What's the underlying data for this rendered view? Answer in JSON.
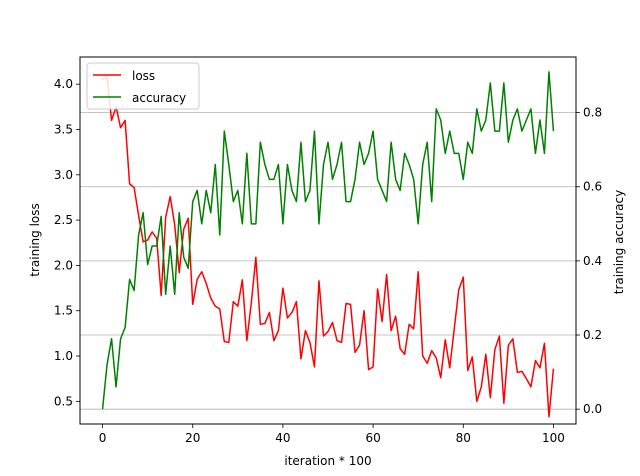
{
  "chart_data": {
    "type": "line",
    "xlabel": "iteration * 100",
    "ylabel": "training loss",
    "y2label": "training accuracy",
    "xlim": [
      -5,
      105
    ],
    "ylim": [
      0.25,
      4.3
    ],
    "y2lim": [
      -0.04,
      0.95
    ],
    "xticks": [
      "0",
      "20",
      "40",
      "60",
      "80",
      "100"
    ],
    "yticks": [
      "0.5",
      "1.0",
      "1.5",
      "2.0",
      "2.5",
      "3.0",
      "3.5",
      "4.0"
    ],
    "y2ticks": [
      "0.0",
      "0.2",
      "0.4",
      "0.6",
      "0.8"
    ],
    "grid": "horizontal lines at right-axis ticks",
    "legend": "upper-left",
    "x": [
      0,
      1,
      2,
      3,
      4,
      5,
      6,
      7,
      8,
      9,
      10,
      11,
      12,
      13,
      14,
      15,
      16,
      17,
      18,
      19,
      20,
      21,
      22,
      23,
      24,
      25,
      26,
      27,
      28,
      29,
      30,
      31,
      32,
      33,
      34,
      35,
      36,
      37,
      38,
      39,
      40,
      41,
      42,
      43,
      44,
      45,
      46,
      47,
      48,
      49,
      50,
      51,
      52,
      53,
      54,
      55,
      56,
      57,
      58,
      59,
      60,
      61,
      62,
      63,
      64,
      65,
      66,
      67,
      68,
      69,
      70,
      71,
      72,
      73,
      74,
      75,
      76,
      77,
      78,
      79,
      80,
      81,
      82,
      83,
      84,
      85,
      86,
      87,
      88,
      89,
      90,
      91,
      92,
      93,
      94,
      95,
      96,
      97,
      98,
      99,
      100
    ],
    "series": [
      {
        "name": "loss",
        "color": "#ff0000",
        "axis": "left",
        "values": [
          4.05,
          4.08,
          3.6,
          3.75,
          3.52,
          3.6,
          2.9,
          2.86,
          2.55,
          2.26,
          2.28,
          2.37,
          2.3,
          1.67,
          2.53,
          2.76,
          2.45,
          1.92,
          2.4,
          2.52,
          1.57,
          1.85,
          1.93,
          1.8,
          1.64,
          1.55,
          1.52,
          1.16,
          1.15,
          1.6,
          1.55,
          1.84,
          1.17,
          1.59,
          2.09,
          1.35,
          1.36,
          1.48,
          1.17,
          1.28,
          1.75,
          1.42,
          1.48,
          1.6,
          0.97,
          1.28,
          1.15,
          0.88,
          1.83,
          1.22,
          1.27,
          1.37,
          1.17,
          1.15,
          1.58,
          1.57,
          1.04,
          1.12,
          1.5,
          0.85,
          0.88,
          1.74,
          1.38,
          1.9,
          1.28,
          1.44,
          1.08,
          1.02,
          1.35,
          1.3,
          1.93,
          1.0,
          0.92,
          1.06,
          0.98,
          0.76,
          1.18,
          0.87,
          1.3,
          1.73,
          1.87,
          0.84,
          0.99,
          0.5,
          0.66,
          1.02,
          0.54,
          1.07,
          1.22,
          0.48,
          1.12,
          1.19,
          0.82,
          0.83,
          0.75,
          0.66,
          0.95,
          0.87,
          1.14,
          0.33,
          0.86
        ]
      },
      {
        "name": "accuracy",
        "color": "#008000",
        "axis": "right",
        "values": [
          0.0,
          0.12,
          0.19,
          0.06,
          0.19,
          0.22,
          0.35,
          0.32,
          0.47,
          0.53,
          0.39,
          0.44,
          0.44,
          0.52,
          0.31,
          0.44,
          0.31,
          0.53,
          0.41,
          0.38,
          0.56,
          0.59,
          0.5,
          0.59,
          0.53,
          0.66,
          0.47,
          0.75,
          0.66,
          0.56,
          0.59,
          0.5,
          0.69,
          0.5,
          0.5,
          0.72,
          0.66,
          0.62,
          0.62,
          0.66,
          0.5,
          0.66,
          0.59,
          0.56,
          0.72,
          0.56,
          0.59,
          0.75,
          0.5,
          0.66,
          0.72,
          0.62,
          0.66,
          0.72,
          0.56,
          0.56,
          0.62,
          0.72,
          0.66,
          0.69,
          0.75,
          0.62,
          0.59,
          0.56,
          0.72,
          0.62,
          0.59,
          0.69,
          0.66,
          0.62,
          0.5,
          0.66,
          0.72,
          0.56,
          0.81,
          0.78,
          0.69,
          0.75,
          0.69,
          0.69,
          0.62,
          0.72,
          0.69,
          0.81,
          0.75,
          0.78,
          0.88,
          0.75,
          0.75,
          0.88,
          0.72,
          0.78,
          0.81,
          0.75,
          0.78,
          0.81,
          0.69,
          0.78,
          0.69,
          0.91,
          0.75
        ]
      }
    ]
  }
}
